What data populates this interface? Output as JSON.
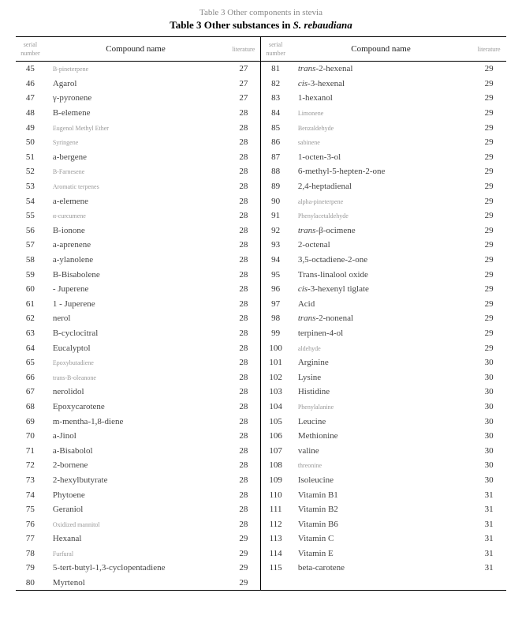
{
  "caption1": "Table 3 Other components in stevia",
  "caption2_prefix": "Table 3   Other substances in ",
  "caption2_italic": "S. rebaudiana",
  "headers": {
    "serial": "serial number",
    "compound": "Compound name",
    "literature": "literature"
  },
  "left_rows": [
    {
      "sn": "45",
      "name": "B-pineterpene",
      "lit": "27",
      "tiny": true
    },
    {
      "sn": "46",
      "name": "Agarol",
      "lit": "27"
    },
    {
      "sn": "47",
      "name": "γ-pyronene",
      "lit": "27"
    },
    {
      "sn": "48",
      "name": "B-elemene",
      "lit": "28"
    },
    {
      "sn": "49",
      "name": "Eugenol Methyl Ether",
      "lit": "28",
      "tiny": true
    },
    {
      "sn": "50",
      "name": "Syringene",
      "lit": "28",
      "tiny": true
    },
    {
      "sn": "51",
      "name": "a-bergene",
      "lit": "28"
    },
    {
      "sn": "52",
      "name": "B-Farnesene",
      "lit": "28",
      "tiny": true
    },
    {
      "sn": "53",
      "name": "Aromatic terpenes",
      "lit": "28",
      "tiny": true
    },
    {
      "sn": "54",
      "name": "a-elemene",
      "lit": "28"
    },
    {
      "sn": "55",
      "name": "α-curcumene",
      "lit": "28",
      "tiny": true
    },
    {
      "sn": "56",
      "name": "B-ionone",
      "lit": "28"
    },
    {
      "sn": "57",
      "name": "a-aprenene",
      "lit": "28"
    },
    {
      "sn": "58",
      "name": "a-ylanolene",
      "lit": "28"
    },
    {
      "sn": "59",
      "name": "B-Bisabolene",
      "lit": "28"
    },
    {
      "sn": "60",
      "name": "  - Juperene",
      "lit": "28"
    },
    {
      "sn": "61",
      "name": "1  - Juperene",
      "lit": "28"
    },
    {
      "sn": "62",
      "name": "nerol",
      "lit": "28"
    },
    {
      "sn": "63",
      "name": "B-cyclocitral",
      "lit": "28"
    },
    {
      "sn": "64",
      "name": "Eucalyptol",
      "lit": "28"
    },
    {
      "sn": "65",
      "name": "Epoxybutadiene",
      "lit": "28",
      "tiny": true
    },
    {
      "sn": "66",
      "name": "trans-B-oleanone",
      "lit": "28",
      "tiny": true
    },
    {
      "sn": "67",
      "name": "nerolidol",
      "lit": "28"
    },
    {
      "sn": "68",
      "name": "Epoxycarotene",
      "lit": "28"
    },
    {
      "sn": "69",
      "name": "m-mentha-1,8-diene",
      "lit": "28"
    },
    {
      "sn": "70",
      "name": "a-Jinol",
      "lit": "28"
    },
    {
      "sn": "71",
      "name": "a-Bisabolol",
      "lit": "28"
    },
    {
      "sn": "72",
      "name": "2-bornene",
      "lit": "28"
    },
    {
      "sn": "73",
      "name": "2-hexylbutyrate",
      "lit": "28"
    },
    {
      "sn": "74",
      "name": "Phytoene",
      "lit": "28"
    },
    {
      "sn": "75",
      "name": "Geraniol",
      "lit": "28"
    },
    {
      "sn": "76",
      "name": "Oxidized mannitol",
      "lit": "28",
      "tiny": true
    },
    {
      "sn": "77",
      "name": "Hexanal",
      "lit": "29"
    },
    {
      "sn": "78",
      "name": "Furfural",
      "lit": "29",
      "tiny": true
    },
    {
      "sn": "79",
      "name": "5-tert-butyl-1,3-cyclopentadiene",
      "lit": "29"
    },
    {
      "sn": "80",
      "name": "Myrtenol",
      "lit": "29"
    }
  ],
  "right_rows": [
    {
      "sn": "81",
      "name": "<span class='ital'>trans</span>-2-hexenal",
      "lit": "29",
      "html": true
    },
    {
      "sn": "82",
      "name": "<span class='ital'>cis</span>-3-hexenal",
      "lit": "29",
      "html": true
    },
    {
      "sn": "83",
      "name": "1-hexanol",
      "lit": "29"
    },
    {
      "sn": "84",
      "name": "Limonene",
      "lit": "29",
      "tiny": true
    },
    {
      "sn": "85",
      "name": "Benzaldehyde",
      "lit": "29",
      "tiny": true
    },
    {
      "sn": "86",
      "name": "sabinene",
      "lit": "29",
      "tiny": true
    },
    {
      "sn": "87",
      "name": "1-octen-3-ol",
      "lit": "29"
    },
    {
      "sn": "88",
      "name": "6-methyl-5-hepten-2-one",
      "lit": "29"
    },
    {
      "sn": "89",
      "name": "2,4-heptadienal",
      "lit": "29"
    },
    {
      "sn": "90",
      "name": "alpha-pineterpene",
      "lit": "29",
      "tiny": true
    },
    {
      "sn": "91",
      "name": "Phenylacetaldehyde",
      "lit": "29",
      "tiny": true
    },
    {
      "sn": "92",
      "name": "<span class='ital'>trans</span>-β-ocimene",
      "lit": "29",
      "html": true
    },
    {
      "sn": "93",
      "name": "2-octenal",
      "lit": "29"
    },
    {
      "sn": "94",
      "name": "3,5-octadiene-2-one",
      "lit": "29"
    },
    {
      "sn": "95",
      "name": "Trans-linalool oxide",
      "lit": "29"
    },
    {
      "sn": "96",
      "name": "<span class='ital'>cis</span>-3-hexenyl tiglate",
      "lit": "29",
      "html": true
    },
    {
      "sn": "97",
      "name": "Acid",
      "lit": "29"
    },
    {
      "sn": "98",
      "name": "<span class='ital'>trans</span>-2-nonenal",
      "lit": "29",
      "html": true
    },
    {
      "sn": "99",
      "name": "terpinen-4-ol",
      "lit": "29"
    },
    {
      "sn": "100",
      "name": "aldehyde",
      "lit": "29",
      "tiny": true
    },
    {
      "sn": "101",
      "name": "Arginine",
      "lit": "30"
    },
    {
      "sn": "102",
      "name": "Lysine",
      "lit": "30"
    },
    {
      "sn": "103",
      "name": "Histidine",
      "lit": "30"
    },
    {
      "sn": "104",
      "name": "Phenylalanine",
      "lit": "30",
      "tiny": true
    },
    {
      "sn": "105",
      "name": "Leucine",
      "lit": "30"
    },
    {
      "sn": "106",
      "name": "Methionine",
      "lit": "30"
    },
    {
      "sn": "107",
      "name": "valine",
      "lit": "30"
    },
    {
      "sn": "108",
      "name": "threonine",
      "lit": "30",
      "tiny": true
    },
    {
      "sn": "109",
      "name": "Isoleucine",
      "lit": "30"
    },
    {
      "sn": "110",
      "name": "Vitamin B1",
      "lit": "31"
    },
    {
      "sn": "111",
      "name": "Vitamin B2",
      "lit": "31"
    },
    {
      "sn": "112",
      "name": "Vitamin B6",
      "lit": "31"
    },
    {
      "sn": "113",
      "name": "Vitamin C",
      "lit": "31"
    },
    {
      "sn": "114",
      "name": "Vitamin E",
      "lit": "31"
    },
    {
      "sn": "115",
      "name": "beta-carotene",
      "lit": "31"
    }
  ]
}
